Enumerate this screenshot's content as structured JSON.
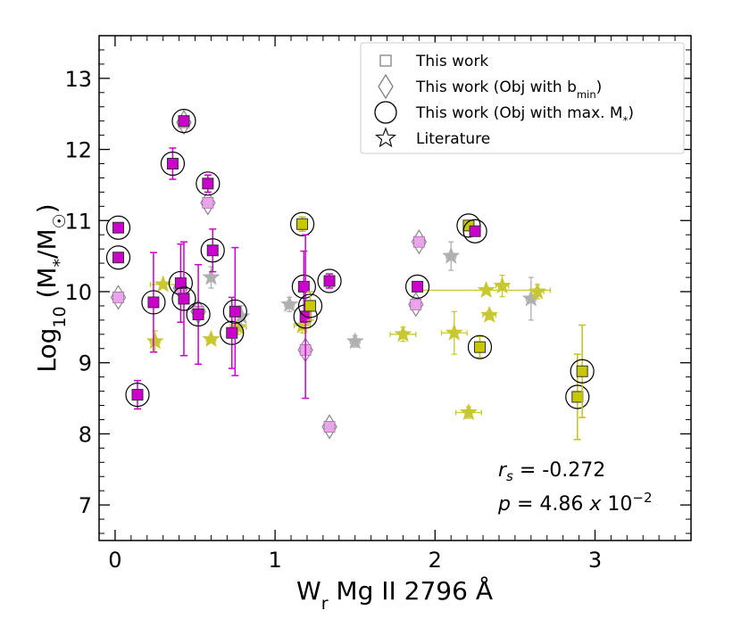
{
  "chart_data": {
    "type": "scatter",
    "xlabel": "W<sub>r</sub> Mg II 2796 Å",
    "ylabel": "Log<sub>10</sub> (M<sub>*</sub>/M<sub>☉</sub>)",
    "xlim": [
      -0.1,
      3.6
    ],
    "ylim": [
      6.5,
      13.6
    ],
    "x_ticks": [
      0,
      1,
      2,
      3
    ],
    "y_ticks": [
      7,
      8,
      9,
      10,
      11,
      12,
      13
    ],
    "x_tick_labels": [
      "0",
      "1",
      "2",
      "3"
    ],
    "y_tick_labels": [
      "7",
      "8",
      "9",
      "10",
      "11",
      "12",
      "13"
    ],
    "legend_position": "top-right",
    "legend": [
      {
        "label": "This work",
        "marker": "square"
      },
      {
        "label": "This work (Obj with b<sub>min</sub>)",
        "marker": "diamond"
      },
      {
        "label": "This work (Obj with max. M<sub>*</sub>)",
        "marker": "circle"
      },
      {
        "label": "Literature",
        "marker": "star"
      }
    ],
    "annotation": {
      "rs_label": "r",
      "rs_sub": "s",
      "rs_value": " = -0.272",
      "p_label": "p",
      "p_value_text": " = 4.86 ",
      "p_x": "x",
      "p_mantissa": " 10",
      "p_exponent": "−2"
    },
    "colors": {
      "this_work_fill": "#cc00cc",
      "this_work_alt_fill": "#c8c800",
      "errorbar_magenta": "#cc00cc",
      "errorbar_olive": "#c2c21a",
      "literature_gray": "#b0b0b0",
      "literature_olive": "#c8c832",
      "diamond_pink": "#e8a6e8",
      "diamond_edge": "#888888"
    },
    "this_work": [
      {
        "x": 0.02,
        "y": 10.9,
        "yerr": 0.0,
        "fill": "magenta",
        "circled": true
      },
      {
        "x": 0.02,
        "y": 10.48,
        "yerr": 0.0,
        "fill": "magenta",
        "circled": true
      },
      {
        "x": 0.14,
        "y": 8.55,
        "yerr": 0.2,
        "fill": "magenta",
        "circled": true
      },
      {
        "x": 0.24,
        "y": 9.85,
        "yerr": 0.7,
        "fill": "magenta",
        "circled": true
      },
      {
        "x": 0.36,
        "y": 11.8,
        "yerr": 0.22,
        "fill": "magenta",
        "circled": true
      },
      {
        "x": 0.41,
        "y": 10.12,
        "yerr": 0.55,
        "fill": "magenta",
        "circled": true
      },
      {
        "x": 0.43,
        "y": 9.9,
        "yerr": 0.8,
        "fill": "magenta",
        "circled": true
      },
      {
        "x": 0.43,
        "y": 12.4,
        "yerr": 0.0,
        "fill": "magenta",
        "circled": true
      },
      {
        "x": 0.52,
        "y": 9.68,
        "yerr": 0.7,
        "fill": "magenta",
        "circled": true
      },
      {
        "x": 0.58,
        "y": 11.52,
        "yerr": 0.12,
        "fill": "magenta",
        "circled": true
      },
      {
        "x": 0.61,
        "y": 10.58,
        "yerr": 0.3,
        "fill": "magenta",
        "circled": true
      },
      {
        "x": 0.73,
        "y": 9.42,
        "yerr": 0.5,
        "fill": "magenta",
        "circled": true
      },
      {
        "x": 0.75,
        "y": 9.72,
        "yerr": 0.9,
        "fill": "magenta",
        "circled": true
      },
      {
        "x": 1.17,
        "y": 10.95,
        "yerr": 0.1,
        "fill": "olive",
        "circled": true
      },
      {
        "x": 1.18,
        "y": 10.07,
        "yerr": 0.5,
        "fill": "magenta",
        "circled": true
      },
      {
        "x": 1.19,
        "y": 9.65,
        "yerr": 1.15,
        "fill": "magenta",
        "circled": true
      },
      {
        "x": 1.22,
        "y": 9.8,
        "yerr": 0.2,
        "fill": "olive",
        "circled": true
      },
      {
        "x": 1.34,
        "y": 10.15,
        "yerr": 0.1,
        "fill": "magenta",
        "circled": true
      },
      {
        "x": 1.89,
        "y": 10.07,
        "yerr": 0.0,
        "fill": "magenta",
        "circled": true
      },
      {
        "x": 2.21,
        "y": 10.93,
        "yerr": 0.05,
        "fill": "olive",
        "circled": true
      },
      {
        "x": 2.25,
        "y": 10.85,
        "yerr": 0.05,
        "fill": "magenta",
        "circled": true
      },
      {
        "x": 2.28,
        "y": 9.22,
        "yerr": 0.15,
        "fill": "olive",
        "circled": true
      },
      {
        "x": 2.89,
        "y": 8.52,
        "yerr": 0.6,
        "fill": "olive",
        "circled": true
      },
      {
        "x": 2.92,
        "y": 8.88,
        "yerr": 0.65,
        "fill": "olive",
        "circled": true
      }
    ],
    "diamonds": [
      {
        "x": 0.02,
        "y": 9.92
      },
      {
        "x": 0.41,
        "y": 10.05
      },
      {
        "x": 0.43,
        "y": 12.38
      },
      {
        "x": 0.58,
        "y": 11.25
      },
      {
        "x": 0.52,
        "y": 9.72
      },
      {
        "x": 1.19,
        "y": 9.18
      },
      {
        "x": 1.34,
        "y": 8.1
      },
      {
        "x": 1.88,
        "y": 9.82
      },
      {
        "x": 1.9,
        "y": 10.7
      }
    ],
    "literature": [
      {
        "x": 0.25,
        "y": 9.3,
        "xerr": 0.03,
        "yerr": 0.15,
        "color": "olive"
      },
      {
        "x": 0.3,
        "y": 10.1,
        "xerr": 0.08,
        "yerr": 0.0,
        "color": "olive"
      },
      {
        "x": 0.6,
        "y": 9.33,
        "xerr": 0.03,
        "yerr": 0.0,
        "color": "olive"
      },
      {
        "x": 0.6,
        "y": 10.2,
        "xerr": 0.0,
        "yerr": 0.15,
        "color": "gray"
      },
      {
        "x": 0.77,
        "y": 9.5,
        "xerr": 0.05,
        "yerr": 0.1,
        "color": "olive"
      },
      {
        "x": 0.79,
        "y": 9.65,
        "xerr": 0.0,
        "yerr": 0.15,
        "color": "gray"
      },
      {
        "x": 1.09,
        "y": 9.82,
        "xerr": 0.03,
        "yerr": 0.1,
        "color": "gray"
      },
      {
        "x": 1.17,
        "y": 9.52,
        "xerr": 0.05,
        "yerr": 0.1,
        "color": "olive"
      },
      {
        "x": 1.5,
        "y": 9.3,
        "xerr": 0.03,
        "yerr": 0.08,
        "color": "gray"
      },
      {
        "x": 1.8,
        "y": 9.4,
        "xerr": 0.08,
        "yerr": 0.1,
        "color": "olive"
      },
      {
        "x": 2.1,
        "y": 10.5,
        "xerr": 0.03,
        "yerr": 0.2,
        "color": "gray"
      },
      {
        "x": 2.12,
        "y": 9.42,
        "xerr": 0.08,
        "yerr": 0.3,
        "color": "olive"
      },
      {
        "x": 2.21,
        "y": 8.3,
        "xerr": 0.08,
        "yerr": 0.08,
        "color": "olive"
      },
      {
        "x": 2.32,
        "y": 10.02,
        "xerr": 0.4,
        "yerr": 0.0,
        "color": "olive"
      },
      {
        "x": 2.34,
        "y": 9.67,
        "xerr": 0.04,
        "yerr": 0.06,
        "color": "olive"
      },
      {
        "x": 2.42,
        "y": 10.08,
        "xerr": 0.04,
        "yerr": 0.15,
        "color": "olive"
      },
      {
        "x": 2.6,
        "y": 9.9,
        "xerr": 0.03,
        "yerr": 0.3,
        "color": "gray"
      },
      {
        "x": 2.64,
        "y": 10.0,
        "xerr": 0.04,
        "yerr": 0.1,
        "color": "olive"
      }
    ]
  }
}
